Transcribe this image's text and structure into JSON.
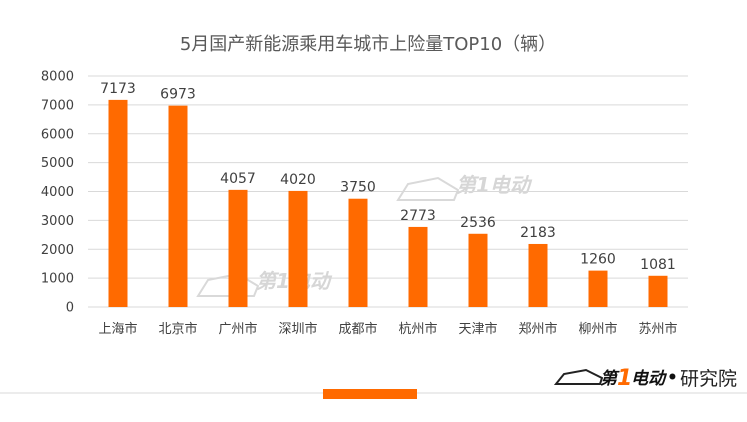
{
  "chart_data": {
    "type": "bar",
    "title": "5月国产新能源乘用车城市上险量TOP10（辆）",
    "categories": [
      "上海市",
      "北京市",
      "广州市",
      "深圳市",
      "成都市",
      "杭州市",
      "天津市",
      "郑州市",
      "柳州市",
      "苏州市"
    ],
    "values": [
      7173,
      6973,
      4057,
      4020,
      3750,
      2773,
      2536,
      2183,
      1260,
      1081
    ],
    "ylim": [
      0,
      8000
    ],
    "yticks": [
      0,
      1000,
      2000,
      3000,
      4000,
      5000,
      6000,
      7000,
      8000
    ],
    "grid": true,
    "legend": "none",
    "bar_color": "#ff6a00"
  },
  "branding": {
    "watermark": "第1电动",
    "logo_prefix": "第",
    "logo_one": "1",
    "logo_suffix": "电动",
    "logo_dot": "•",
    "logo_sub": "研究院",
    "accent_color": "#ff6a00"
  }
}
